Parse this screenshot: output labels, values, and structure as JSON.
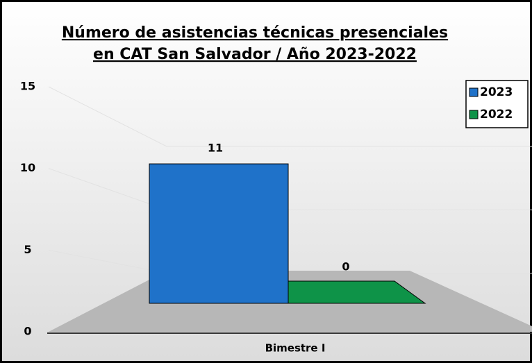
{
  "chart_data": {
    "type": "bar3d",
    "title": [
      "Número de asistencias técnicas presenciales",
      "en CAT San Salvador / Año 2023-2022"
    ],
    "categories": [
      "Bimestre I"
    ],
    "series": [
      {
        "name": "2023",
        "color": "#1f72c9",
        "values": [
          11
        ]
      },
      {
        "name": "2022",
        "color": "#0e9348",
        "values": [
          0
        ]
      }
    ],
    "ylim": [
      0,
      15
    ],
    "yticks": [
      0,
      5,
      10,
      15
    ],
    "grid": true,
    "legend": "top-right"
  }
}
